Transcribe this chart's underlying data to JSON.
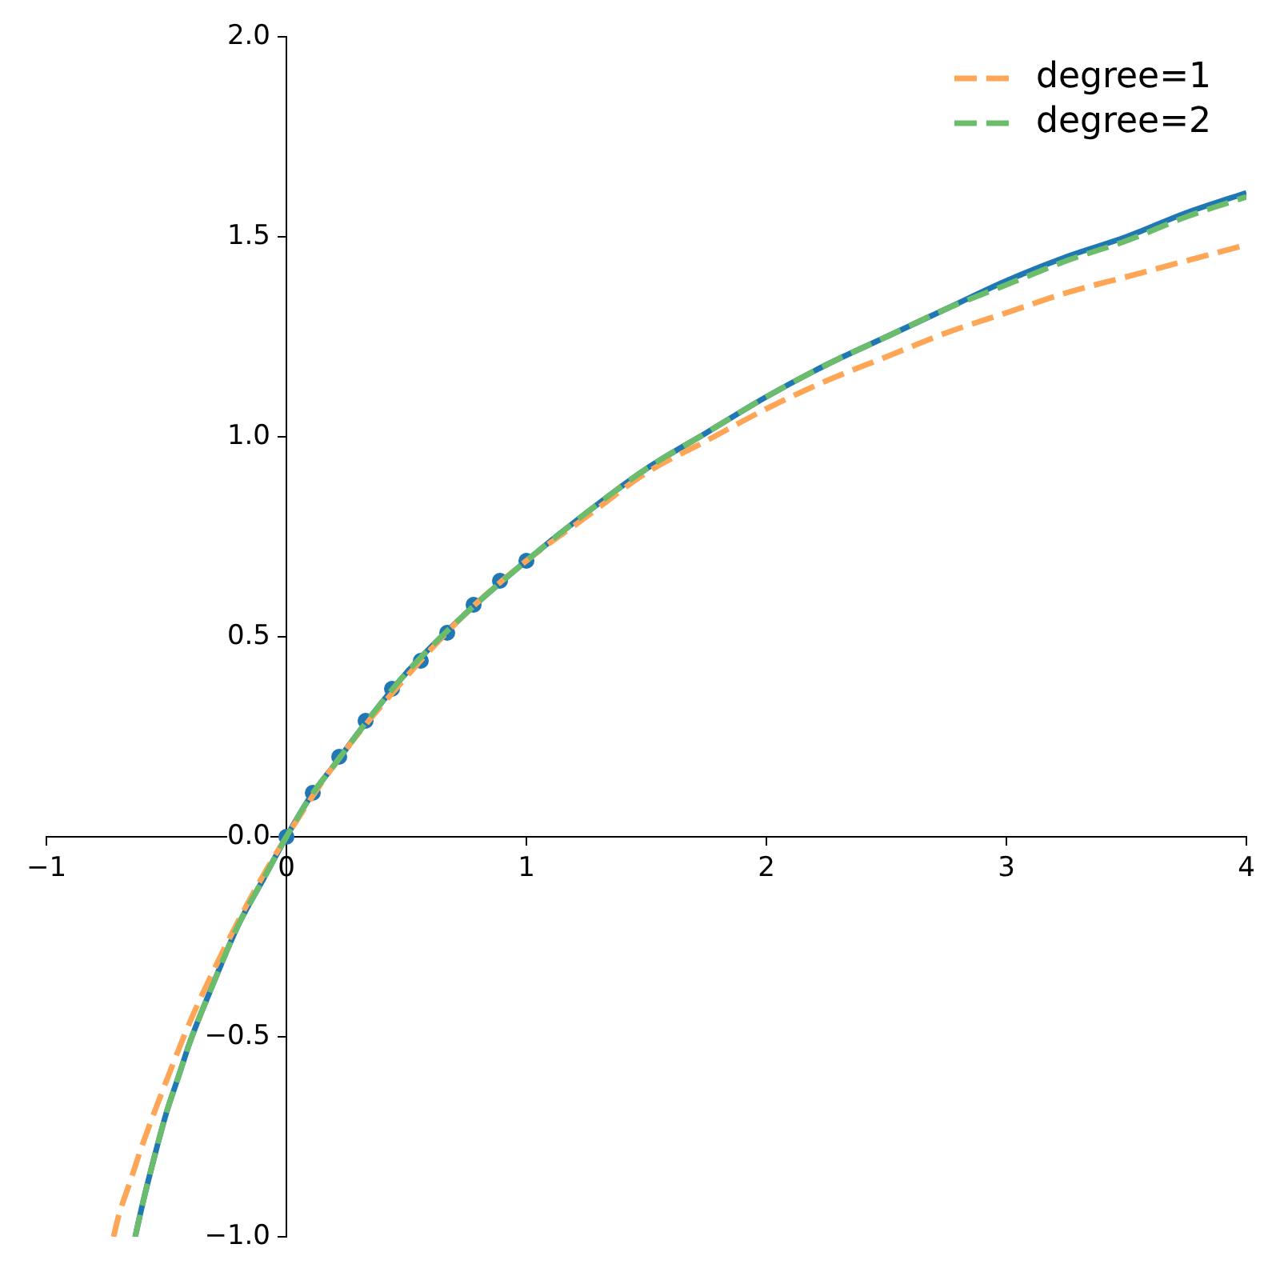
{
  "chart_data": {
    "type": "line",
    "xlim": [
      -1,
      4
    ],
    "ylim": [
      -1,
      2
    ],
    "xticks": [
      {
        "value": -1,
        "label": "−1"
      },
      0,
      1,
      2,
      3,
      4
    ],
    "yticks": [
      {
        "value": -1,
        "label": "−1.0"
      },
      {
        "value": -0.5,
        "label": "−0.5"
      },
      {
        "value": 0,
        "label": "0.0"
      },
      {
        "value": 0.5,
        "label": "0.5"
      },
      {
        "value": 1,
        "label": "1.0"
      },
      {
        "value": 1.5,
        "label": "1.5"
      },
      {
        "value": 2,
        "label": "2.0"
      }
    ],
    "legend": "top right",
    "series": [
      {
        "type": "scatter",
        "color": "#1f77b4",
        "marker": "circle",
        "x": [
          0,
          0.11,
          0.22,
          0.33,
          0.44,
          0.56,
          0.67,
          0.78,
          0.89,
          1.0
        ],
        "values": [
          0,
          0.11,
          0.2,
          0.29,
          0.37,
          0.44,
          0.51,
          0.58,
          0.64,
          0.69
        ]
      },
      {
        "color": "#1f77b4",
        "line_style": "solid",
        "x": [
          -0.63,
          -0.6,
          -0.55,
          -0.5,
          -0.45,
          -0.4,
          -0.3,
          -0.2,
          -0.1,
          0,
          0.1,
          0.2,
          0.35,
          0.5,
          0.75,
          1,
          1.25,
          1.5,
          1.75,
          2,
          2.25,
          2.5,
          2.75,
          3,
          3.25,
          3.5,
          3.75,
          4
        ],
        "values": [
          -1.0,
          -0.92,
          -0.8,
          -0.69,
          -0.6,
          -0.51,
          -0.36,
          -0.22,
          -0.11,
          0,
          0.1,
          0.18,
          0.3,
          0.41,
          0.56,
          0.69,
          0.81,
          0.92,
          1.01,
          1.1,
          1.18,
          1.25,
          1.32,
          1.39,
          1.45,
          1.5,
          1.56,
          1.61
        ]
      },
      {
        "name": "degree=1",
        "color": "#ffa556",
        "line_style": "dashed",
        "x": [
          -0.72,
          -0.7,
          -0.65,
          -0.6,
          -0.5,
          -0.4,
          -0.3,
          -0.2,
          -0.1,
          0,
          0.2,
          0.5,
          0.75,
          1,
          1.25,
          1.5,
          1.75,
          2,
          2.25,
          2.5,
          2.75,
          3,
          3.25,
          3.5,
          3.75,
          4
        ],
        "values": [
          -1.0,
          -0.95,
          -0.86,
          -0.77,
          -0.61,
          -0.46,
          -0.33,
          -0.21,
          -0.1,
          0,
          0.18,
          0.4,
          0.56,
          0.69,
          0.8,
          0.91,
          0.99,
          1.07,
          1.14,
          1.2,
          1.26,
          1.31,
          1.36,
          1.4,
          1.44,
          1.48
        ]
      },
      {
        "name": "degree=2",
        "color": "#6bbc6b",
        "line_style": "dashed",
        "x": [
          -0.63,
          -0.6,
          -0.55,
          -0.5,
          -0.45,
          -0.4,
          -0.3,
          -0.2,
          -0.1,
          0,
          0.1,
          0.2,
          0.35,
          0.5,
          0.75,
          1,
          1.25,
          1.5,
          1.75,
          2,
          2.25,
          2.5,
          2.75,
          3,
          3.25,
          3.5,
          3.75,
          4
        ],
        "values": [
          -1.0,
          -0.92,
          -0.8,
          -0.69,
          -0.6,
          -0.51,
          -0.36,
          -0.22,
          -0.11,
          0,
          0.1,
          0.18,
          0.3,
          0.41,
          0.56,
          0.69,
          0.81,
          0.92,
          1.01,
          1.1,
          1.18,
          1.25,
          1.32,
          1.38,
          1.44,
          1.49,
          1.55,
          1.6
        ]
      }
    ]
  }
}
